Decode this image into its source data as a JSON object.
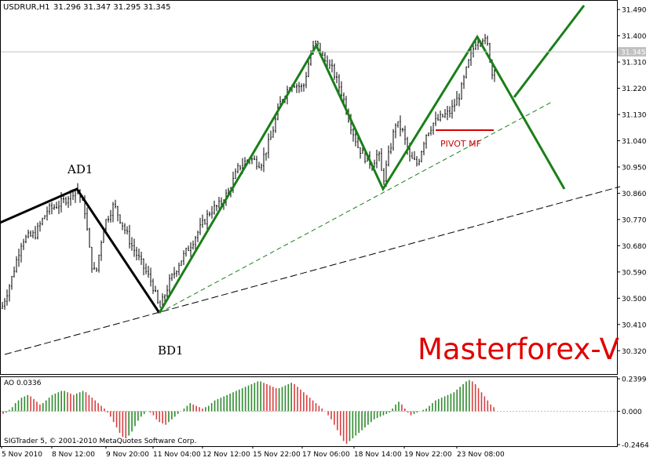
{
  "header": {
    "symbol_label": "USDRUR,H1",
    "ohlc_text": "31.296 31.347 31.295 31.345"
  },
  "watermark": {
    "text": "Masterforex-V",
    "color": "#e00000"
  },
  "pattern_labels": {
    "ad1": "AD1",
    "bd1": "BD1",
    "pivot": "PIVOT MF"
  },
  "indicator": {
    "title": "AO 0.0336",
    "copyright": "SIGTrader 5, © 2001-2010 MetaQuotes Software Corp."
  },
  "colors": {
    "background": "#ffffff",
    "candle": "#000000",
    "zigzag_green": "#1a7f1a",
    "zigzag_black": "#000000",
    "pivot_line": "#d40000",
    "pivot_text": "#d40000",
    "ao_up": "#2e8b2e",
    "ao_down": "#d84040",
    "price_tag_bg": "#c0c0c0",
    "price_line": "#c0c0c0"
  },
  "chart_data": [
    {
      "type": "candlestick",
      "symbol": "USDRUR",
      "timeframe": "H1",
      "current_price": 31.345,
      "current_price_label": "31.345",
      "ylim": [
        30.24,
        31.52
      ],
      "y_ticks": [
        "31.490",
        "31.400",
        "31.310",
        "31.220",
        "31.130",
        "31.040",
        "30.950",
        "30.860",
        "30.770",
        "30.680",
        "30.590",
        "30.500",
        "30.410",
        "30.320"
      ],
      "x_ticks": [
        "5 Nov 2010",
        "8 Nov 12:00",
        "9 Nov 20:00",
        "11 Nov 04:00",
        "12 Nov 12:00",
        "15 Nov 22:00",
        "17 Nov 06:00",
        "18 Nov 14:00",
        "19 Nov 22:00",
        "23 Nov 08:00"
      ],
      "price_path": [
        [
          0,
          30.45
        ],
        [
          14,
          30.56
        ],
        [
          28,
          30.7
        ],
        [
          45,
          30.72
        ],
        [
          60,
          30.8
        ],
        [
          80,
          30.83
        ],
        [
          98,
          30.88
        ],
        [
          108,
          30.8
        ],
        [
          116,
          30.62
        ],
        [
          122,
          30.58
        ],
        [
          132,
          30.75
        ],
        [
          145,
          30.82
        ],
        [
          155,
          30.76
        ],
        [
          168,
          30.68
        ],
        [
          180,
          30.62
        ],
        [
          194,
          30.55
        ],
        [
          203,
          30.46
        ],
        [
          215,
          30.55
        ],
        [
          228,
          30.62
        ],
        [
          242,
          30.68
        ],
        [
          255,
          30.74
        ],
        [
          268,
          30.8
        ],
        [
          280,
          30.82
        ],
        [
          292,
          30.87
        ],
        [
          304,
          30.95
        ],
        [
          318,
          30.98
        ],
        [
          332,
          30.96
        ],
        [
          345,
          31.05
        ],
        [
          358,
          31.18
        ],
        [
          372,
          31.24
        ],
        [
          386,
          31.22
        ],
        [
          396,
          31.34
        ],
        [
          403,
          31.38
        ],
        [
          412,
          31.32
        ],
        [
          424,
          31.28
        ],
        [
          436,
          31.2
        ],
        [
          446,
          31.1
        ],
        [
          456,
          31.02
        ],
        [
          466,
          30.98
        ],
        [
          474,
          30.96
        ],
        [
          482,
          31.0
        ],
        [
          488,
          30.9
        ],
        [
          496,
          31.0
        ],
        [
          504,
          31.1
        ],
        [
          512,
          31.08
        ],
        [
          522,
          30.98
        ],
        [
          532,
          30.96
        ],
        [
          542,
          31.06
        ],
        [
          552,
          31.1
        ],
        [
          562,
          31.12
        ],
        [
          574,
          31.14
        ],
        [
          586,
          31.2
        ],
        [
          596,
          31.3
        ],
        [
          606,
          31.38
        ],
        [
          614,
          31.4
        ],
        [
          622,
          31.36
        ],
        [
          628,
          31.25
        ],
        [
          632,
          31.34
        ]
      ],
      "zigzag_black": [
        [
          "8 Nov 12:00",
          30.89
        ],
        [
          "11 Nov 04:00",
          30.46
        ]
      ],
      "zigzag_green": [
        [
          "11 Nov 04:00",
          30.46
        ],
        [
          "17 Nov 06:00",
          31.38
        ],
        [
          "18 Nov 14:00",
          30.89
        ],
        [
          "23 Nov 08:00",
          31.41
        ]
      ],
      "projection": [
        [
          "23 Nov 08:00",
          31.41
        ],
        [
          "projected low",
          30.89
        ]
      ],
      "projection_up": [
        [
          "projected turn",
          31.2
        ],
        [
          "projected high",
          31.51
        ]
      ],
      "trendlines": [
        {
          "style": "dashed",
          "color": "#1a7f1a",
          "from": 30.46,
          "to": 31.2
        },
        {
          "style": "dashed",
          "color": "#000000",
          "from": 30.31,
          "to": 30.89
        }
      ],
      "pivot_level": 31.085
    },
    {
      "type": "bar",
      "name": "AO",
      "last_value": 0.0336,
      "ylim": [
        -0.2464,
        0.2399
      ],
      "y_ticks": [
        "0.2399",
        "0.000",
        "-0.2464"
      ],
      "values": [
        -0.02,
        -0.01,
        0.01,
        0.03,
        0.06,
        0.08,
        0.1,
        0.11,
        0.12,
        0.11,
        0.09,
        0.07,
        0.05,
        0.06,
        0.08,
        0.1,
        0.12,
        0.13,
        0.14,
        0.15,
        0.15,
        0.14,
        0.13,
        0.12,
        0.13,
        0.14,
        0.15,
        0.14,
        0.12,
        0.1,
        0.08,
        0.06,
        0.04,
        0.02,
        -0.01,
        -0.04,
        -0.08,
        -0.12,
        -0.16,
        -0.19,
        -0.2,
        -0.18,
        -0.15,
        -0.11,
        -0.07,
        -0.04,
        -0.02,
        0.0,
        -0.01,
        -0.03,
        -0.06,
        -0.08,
        -0.09,
        -0.1,
        -0.08,
        -0.06,
        -0.04,
        -0.02,
        0.0,
        0.02,
        0.04,
        0.06,
        0.05,
        0.04,
        0.03,
        0.02,
        0.03,
        0.04,
        0.06,
        0.08,
        0.09,
        0.1,
        0.11,
        0.12,
        0.13,
        0.14,
        0.15,
        0.16,
        0.17,
        0.18,
        0.19,
        0.2,
        0.21,
        0.22,
        0.22,
        0.21,
        0.2,
        0.19,
        0.18,
        0.17,
        0.17,
        0.18,
        0.19,
        0.2,
        0.21,
        0.2,
        0.18,
        0.16,
        0.14,
        0.12,
        0.1,
        0.08,
        0.06,
        0.04,
        0.02,
        0.0,
        -0.03,
        -0.06,
        -0.1,
        -0.14,
        -0.18,
        -0.22,
        -0.24,
        -0.22,
        -0.2,
        -0.18,
        -0.16,
        -0.14,
        -0.12,
        -0.1,
        -0.08,
        -0.06,
        -0.05,
        -0.04,
        -0.03,
        -0.02,
        -0.01,
        0.02,
        0.05,
        0.07,
        0.05,
        0.02,
        -0.01,
        -0.03,
        -0.02,
        -0.01,
        0.0,
        0.01,
        0.02,
        0.04,
        0.06,
        0.08,
        0.09,
        0.1,
        0.11,
        0.12,
        0.13,
        0.14,
        0.16,
        0.18,
        0.2,
        0.22,
        0.23,
        0.22,
        0.2,
        0.17,
        0.14,
        0.11,
        0.08,
        0.05,
        0.03
      ]
    }
  ]
}
